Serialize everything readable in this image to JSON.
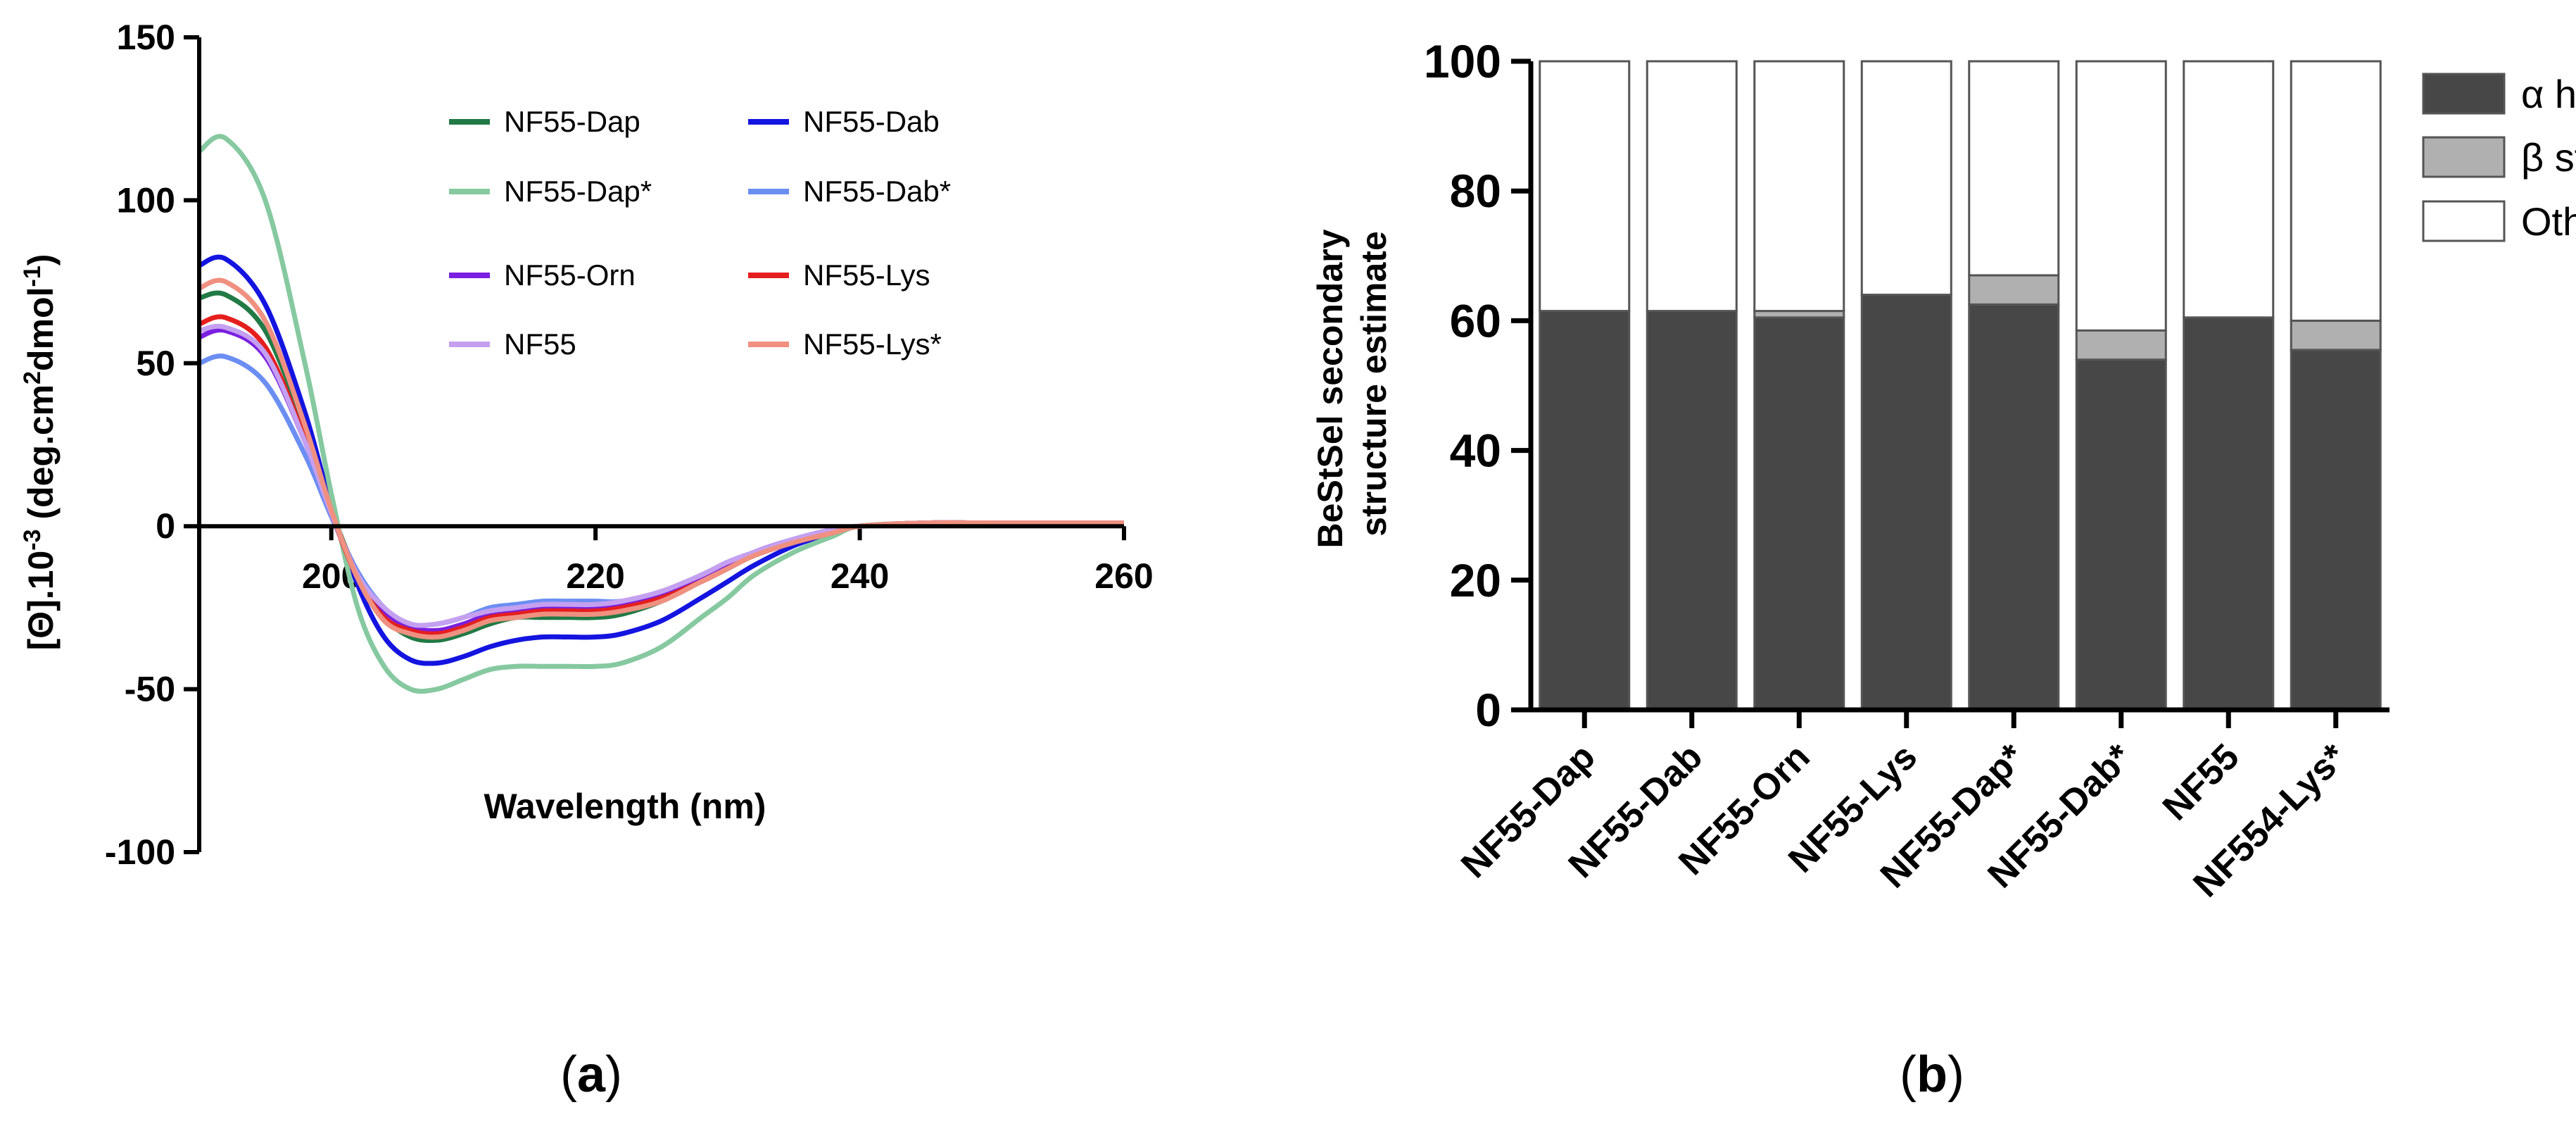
{
  "chart_data": [
    {
      "panel": "a",
      "type": "line",
      "title": "",
      "xlabel": "Wavelength (nm)",
      "ylabel": {
        "prefix": "[Θ].10",
        "exp1": "-3",
        "mid": " (deg.cm",
        "exp2": "2",
        "mid2": "dmol",
        "exp3": "-1",
        "suffix": ")"
      },
      "xlim": [
        190,
        260
      ],
      "ylim": [
        -100,
        150
      ],
      "xticks": [
        200,
        220,
        240,
        260
      ],
      "yticks": [
        -100,
        -50,
        0,
        50,
        100,
        150
      ],
      "series": [
        {
          "name": "NF55-Dap",
          "color": "#217a45",
          "x": [
            190,
            192,
            195,
            198,
            200,
            202,
            204,
            206,
            208,
            210,
            212,
            214,
            216,
            218,
            220,
            222,
            225,
            228,
            230,
            232,
            235,
            238,
            240,
            245,
            250,
            260
          ],
          "y": [
            70,
            71,
            60,
            30,
            5,
            -15,
            -28,
            -34,
            -35,
            -33,
            -30,
            -28,
            -28,
            -28,
            -28,
            -27,
            -23,
            -17,
            -13,
            -9,
            -5,
            -2,
            0,
            1,
            1,
            1
          ]
        },
        {
          "name": "NF55-Dab",
          "color": "#1414e0",
          "x": [
            190,
            192,
            195,
            198,
            200,
            202,
            204,
            206,
            208,
            210,
            212,
            214,
            216,
            218,
            220,
            222,
            225,
            228,
            230,
            232,
            235,
            238,
            240,
            245,
            250,
            260
          ],
          "y": [
            80,
            82,
            68,
            35,
            6,
            -18,
            -34,
            -41,
            -42,
            -40,
            -37,
            -35,
            -34,
            -34,
            -34,
            -33,
            -29,
            -22,
            -17,
            -12,
            -6,
            -2,
            0,
            1,
            1,
            1
          ]
        },
        {
          "name": "NF55-Dap*",
          "color": "#86c9a0",
          "x": [
            190,
            192,
            195,
            198,
            200,
            202,
            204,
            206,
            208,
            210,
            212,
            214,
            216,
            218,
            220,
            222,
            225,
            228,
            230,
            232,
            235,
            238,
            240,
            245,
            250,
            260
          ],
          "y": [
            115,
            119,
            100,
            50,
            10,
            -25,
            -43,
            -50,
            -50,
            -47,
            -44,
            -43,
            -43,
            -43,
            -43,
            -42,
            -37,
            -28,
            -22,
            -15,
            -8,
            -3,
            0,
            1,
            1,
            1
          ]
        },
        {
          "name": "NF55-Dab*",
          "color": "#6b8ef2",
          "x": [
            190,
            192,
            195,
            198,
            200,
            202,
            204,
            206,
            208,
            210,
            212,
            214,
            216,
            218,
            220,
            222,
            225,
            228,
            230,
            232,
            235,
            238,
            240,
            245,
            250,
            260
          ],
          "y": [
            50,
            52,
            44,
            22,
            3,
            -14,
            -25,
            -30,
            -30,
            -28,
            -25,
            -24,
            -23,
            -23,
            -23,
            -23,
            -20,
            -15,
            -11,
            -8,
            -4,
            -1,
            0,
            1,
            1,
            1
          ]
        },
        {
          "name": "NF55-Orn",
          "color": "#7a1fe0",
          "x": [
            190,
            192,
            195,
            198,
            200,
            202,
            204,
            206,
            208,
            210,
            212,
            214,
            216,
            218,
            220,
            222,
            225,
            228,
            230,
            232,
            235,
            238,
            240,
            245,
            250,
            260
          ],
          "y": [
            58,
            60,
            52,
            26,
            4,
            -15,
            -26,
            -31,
            -32,
            -30,
            -27,
            -26,
            -25,
            -25,
            -25,
            -24,
            -21,
            -16,
            -12,
            -8,
            -4,
            -1,
            0,
            1,
            1,
            1
          ]
        },
        {
          "name": "NF55-Lys",
          "color": "#e51e1e",
          "x": [
            190,
            192,
            195,
            198,
            200,
            202,
            204,
            206,
            208,
            210,
            212,
            214,
            216,
            218,
            220,
            222,
            225,
            228,
            230,
            232,
            235,
            238,
            240,
            245,
            250,
            260
          ],
          "y": [
            62,
            64,
            55,
            27,
            4,
            -16,
            -28,
            -32,
            -33,
            -31,
            -28,
            -27,
            -26,
            -26,
            -26,
            -25,
            -22,
            -17,
            -13,
            -9,
            -5,
            -2,
            0,
            1,
            1,
            1
          ]
        },
        {
          "name": "NF55",
          "color": "#c5a0f0",
          "x": [
            190,
            192,
            195,
            198,
            200,
            202,
            204,
            206,
            208,
            210,
            212,
            214,
            216,
            218,
            220,
            222,
            225,
            228,
            230,
            232,
            235,
            238,
            240,
            245,
            250,
            260
          ],
          "y": [
            60,
            61,
            53,
            26,
            4,
            -15,
            -25,
            -30,
            -30,
            -28,
            -26,
            -25,
            -24,
            -24,
            -24,
            -23,
            -20,
            -15,
            -11,
            -8,
            -4,
            -1,
            0,
            1,
            1,
            1
          ]
        },
        {
          "name": "NF55-Lys*",
          "color": "#f09080",
          "x": [
            190,
            192,
            195,
            198,
            200,
            202,
            204,
            206,
            208,
            210,
            212,
            214,
            216,
            218,
            220,
            222,
            225,
            228,
            230,
            232,
            235,
            238,
            240,
            245,
            250,
            260
          ],
          "y": [
            73,
            75,
            63,
            31,
            5,
            -16,
            -29,
            -33,
            -34,
            -32,
            -29,
            -28,
            -27,
            -27,
            -27,
            -26,
            -23,
            -17,
            -13,
            -9,
            -5,
            -2,
            0,
            1,
            1,
            1
          ]
        }
      ],
      "legend_order": [
        "NF55-Dap",
        "NF55-Dab",
        "NF55-Dap*",
        "NF55-Dab*",
        "NF55-Orn",
        "NF55-Lys",
        "NF55",
        "NF55-Lys*"
      ],
      "legend_position": "top-right",
      "panel_label": {
        "open": "(",
        "letter": "a",
        "close": ")"
      }
    },
    {
      "panel": "b",
      "type": "bar",
      "stacked": true,
      "title": "",
      "xlabel": "",
      "ylabel_lines": [
        "BeStSel secondary",
        "structure estimate"
      ],
      "ylim": [
        0,
        100
      ],
      "yticks": [
        0,
        20,
        40,
        60,
        80,
        100
      ],
      "categories": [
        "NF55-Dap",
        "NF55-Dab",
        "NF55-Orn",
        "NF55-Lys",
        "NF55-Dap*",
        "NF55-Dab*",
        "NF55",
        "NF554-Lys*"
      ],
      "series": [
        {
          "name": "α helix",
          "color": "#474747",
          "values": [
            61.5,
            61.5,
            60.5,
            64,
            62.5,
            54,
            60.5,
            55.5
          ]
        },
        {
          "name": "β strand",
          "color": "#b0b0b0",
          "values": [
            0,
            0,
            1,
            0,
            4.5,
            4.5,
            0,
            4.5
          ]
        },
        {
          "name": "Other",
          "color": "#ffffff",
          "values": [
            38.5,
            38.5,
            38.5,
            36,
            33,
            41.5,
            39.5,
            40
          ]
        }
      ],
      "legend_position": "top-right",
      "panel_label": {
        "open": "(",
        "letter": "b",
        "close": ")"
      }
    }
  ]
}
